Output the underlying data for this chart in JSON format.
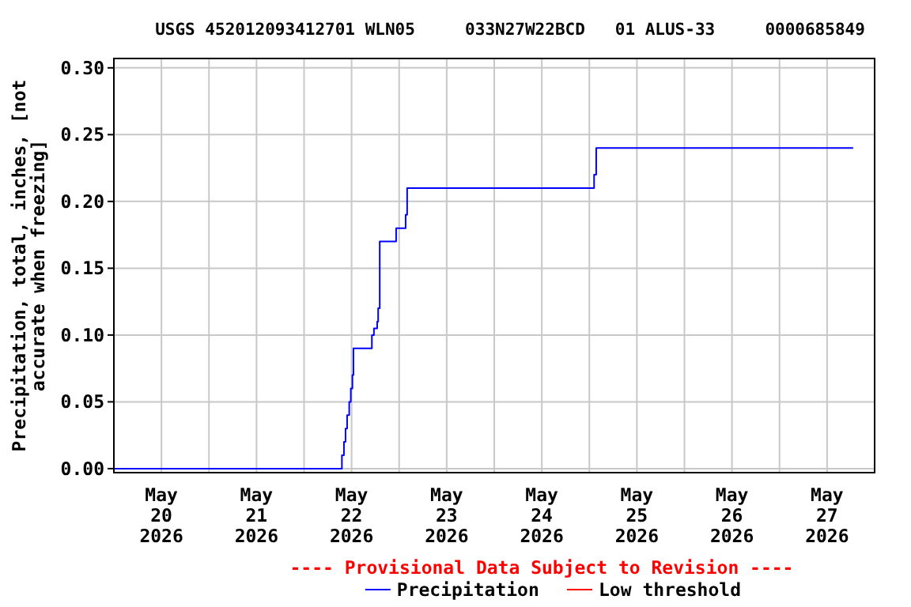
{
  "chart_data": {
    "type": "step",
    "title": "USGS 452012093412701 WLN05     033N27W22BCD   01 ALUS-33     0000685849",
    "ylabel": "Precipitation, total, inches, [not accurate when freezing]",
    "annotations": [
      "---- Provisional Data Subject to Revision ----"
    ],
    "x": [
      "2026-05-20T00:00",
      "2026-05-22T09:33",
      "2026-05-22T10:04",
      "2026-05-22T10:28",
      "2026-05-22T10:52",
      "2026-05-22T11:24",
      "2026-05-22T11:48",
      "2026-05-22T12:12",
      "2026-05-22T12:28",
      "2026-05-22T17:07",
      "2026-05-22T17:38",
      "2026-05-22T18:27",
      "2026-05-22T18:42",
      "2026-05-22T19:06",
      "2026-05-22T23:14",
      "2026-05-23T01:38",
      "2026-05-23T02:01",
      "2026-05-25T01:12",
      "2026-05-25T01:44",
      "2026-05-27T18:35"
    ],
    "series": [
      {
        "name": "Precipitation",
        "color": "#0000ff",
        "values": [
          0,
          0.01,
          0.02,
          0.03,
          0.04,
          0.05,
          0.06,
          0.07,
          0.09,
          0.1,
          0.105,
          0.11,
          0.12,
          0.17,
          0.18,
          0.19,
          0.21,
          0.22,
          0.24,
          0.24
        ]
      },
      {
        "name": "Low threshold",
        "color": "#ff0000",
        "values": [
          null,
          null,
          null,
          null,
          null,
          null,
          null,
          null,
          null,
          null,
          null,
          null,
          null,
          null,
          null,
          null,
          null,
          null,
          null,
          null
        ]
      }
    ],
    "xlim": [
      "2026-05-20T00:00",
      "2026-05-28T00:00"
    ],
    "xticks": [
      {
        "value": "2026-05-20T12:00",
        "label": "May\n20\n2026"
      },
      {
        "value": "2026-05-21T00:00",
        "label": null
      },
      {
        "value": "2026-05-21T12:00",
        "label": "May\n21\n2026"
      },
      {
        "value": "2026-05-22T00:00",
        "label": null
      },
      {
        "value": "2026-05-22T12:00",
        "label": "May\n22\n2026"
      },
      {
        "value": "2026-05-23T00:00",
        "label": null
      },
      {
        "value": "2026-05-23T12:00",
        "label": "May\n23\n2026"
      },
      {
        "value": "2026-05-24T00:00",
        "label": null
      },
      {
        "value": "2026-05-24T12:00",
        "label": "May\n24\n2026"
      },
      {
        "value": "2026-05-25T00:00",
        "label": null
      },
      {
        "value": "2026-05-25T12:00",
        "label": "May\n25\n2026"
      },
      {
        "value": "2026-05-26T00:00",
        "label": null
      },
      {
        "value": "2026-05-26T12:00",
        "label": "May\n26\n2026"
      },
      {
        "value": "2026-05-27T00:00",
        "label": null
      },
      {
        "value": "2026-05-27T12:00",
        "label": "May\n27\n2026"
      }
    ],
    "ylim": [
      -0.003,
      0.307
    ],
    "yticks": [
      {
        "value": 0,
        "label": "0.00"
      },
      {
        "value": 0.05,
        "label": "0.05"
      },
      {
        "value": 0.1,
        "label": "0.10"
      },
      {
        "value": 0.15,
        "label": "0.15"
      },
      {
        "value": 0.2,
        "label": "0.20"
      },
      {
        "value": 0.25,
        "label": "0.25"
      },
      {
        "value": 0.3,
        "label": "0.30"
      }
    ],
    "grid": true,
    "legend": "bottom",
    "marker": "none",
    "line_style": "solid"
  }
}
